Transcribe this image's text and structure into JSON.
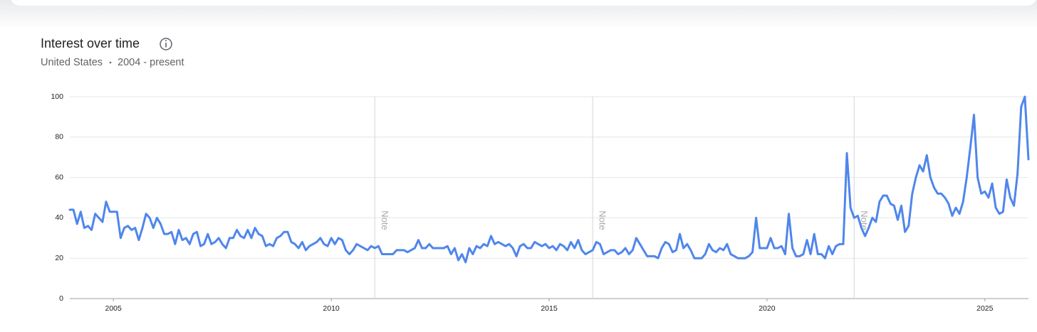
{
  "chart_data": {
    "type": "line",
    "title": "Interest over time",
    "region": "United States",
    "period": "2004 - present",
    "x": [
      2004,
      2004.083,
      2004.167,
      2004.25,
      2004.333,
      2004.417,
      2004.5,
      2004.583,
      2004.667,
      2004.75,
      2004.833,
      2004.917,
      2005,
      2005.083,
      2005.167,
      2005.25,
      2005.333,
      2005.417,
      2005.5,
      2005.583,
      2005.667,
      2005.75,
      2005.833,
      2005.917,
      2006,
      2006.083,
      2006.167,
      2006.25,
      2006.333,
      2006.417,
      2006.5,
      2006.583,
      2006.667,
      2006.75,
      2006.833,
      2006.917,
      2007,
      2007.083,
      2007.167,
      2007.25,
      2007.333,
      2007.417,
      2007.5,
      2007.583,
      2007.667,
      2007.75,
      2007.833,
      2007.917,
      2008,
      2008.083,
      2008.167,
      2008.25,
      2008.333,
      2008.417,
      2008.5,
      2008.583,
      2008.667,
      2008.75,
      2008.833,
      2008.917,
      2009,
      2009.083,
      2009.167,
      2009.25,
      2009.333,
      2009.417,
      2009.5,
      2009.583,
      2009.667,
      2009.75,
      2009.833,
      2009.917,
      2010,
      2010.083,
      2010.167,
      2010.25,
      2010.333,
      2010.417,
      2010.5,
      2010.583,
      2010.667,
      2010.75,
      2010.833,
      2010.917,
      2011,
      2011.083,
      2011.167,
      2011.25,
      2011.333,
      2011.417,
      2011.5,
      2011.583,
      2011.667,
      2011.75,
      2011.833,
      2011.917,
      2012,
      2012.083,
      2012.167,
      2012.25,
      2012.333,
      2012.417,
      2012.5,
      2012.583,
      2012.667,
      2012.75,
      2012.833,
      2012.917,
      2013,
      2013.083,
      2013.167,
      2013.25,
      2013.333,
      2013.417,
      2013.5,
      2013.583,
      2013.667,
      2013.75,
      2013.833,
      2013.917,
      2014,
      2014.083,
      2014.167,
      2014.25,
      2014.333,
      2014.417,
      2014.5,
      2014.583,
      2014.667,
      2014.75,
      2014.833,
      2014.917,
      2015,
      2015.083,
      2015.167,
      2015.25,
      2015.333,
      2015.417,
      2015.5,
      2015.583,
      2015.667,
      2015.75,
      2015.833,
      2015.917,
      2016,
      2016.083,
      2016.167,
      2016.25,
      2016.333,
      2016.417,
      2016.5,
      2016.583,
      2016.667,
      2016.75,
      2016.833,
      2016.917,
      2017,
      2017.083,
      2017.167,
      2017.25,
      2017.333,
      2017.417,
      2017.5,
      2017.583,
      2017.667,
      2017.75,
      2017.833,
      2017.917,
      2018,
      2018.083,
      2018.167,
      2018.25,
      2018.333,
      2018.417,
      2018.5,
      2018.583,
      2018.667,
      2018.75,
      2018.833,
      2018.917,
      2019,
      2019.083,
      2019.167,
      2019.25,
      2019.333,
      2019.417,
      2019.5,
      2019.583,
      2019.667,
      2019.75,
      2019.833,
      2019.917,
      2020,
      2020.083,
      2020.167,
      2020.25,
      2020.333,
      2020.417,
      2020.5,
      2020.583,
      2020.667,
      2020.75,
      2020.833,
      2020.917,
      2021,
      2021.083,
      2021.167,
      2021.25,
      2021.333,
      2021.417,
      2021.5,
      2021.583,
      2021.667,
      2021.75,
      2021.833,
      2021.917,
      2022,
      2022.083,
      2022.167,
      2022.25,
      2022.333,
      2022.417,
      2022.5,
      2022.583,
      2022.667,
      2022.75,
      2022.833,
      2022.917,
      2023,
      2023.083,
      2023.167,
      2023.25,
      2023.333,
      2023.417,
      2023.5,
      2023.583,
      2023.667,
      2023.75,
      2023.833,
      2023.917,
      2024,
      2024.083,
      2024.167,
      2024.25,
      2024.333,
      2024.417,
      2024.5,
      2024.583,
      2024.667,
      2024.75,
      2024.833,
      2024.917,
      2025,
      2025.083,
      2025.167,
      2025.25,
      2025.333,
      2025.417,
      2025.5,
      2025.583,
      2025.667,
      2025.75,
      2025.833,
      2025.917,
      2026
    ],
    "series": [
      {
        "color": "#4f86ec",
        "values": [
          44,
          44,
          37,
          43,
          35,
          36,
          34,
          42,
          40,
          38,
          48,
          43,
          43,
          43,
          30,
          35,
          36,
          34,
          35,
          29,
          35,
          42,
          40,
          35,
          40,
          37,
          32,
          32,
          33,
          27,
          34,
          29,
          30,
          27,
          32,
          33,
          26,
          27,
          32,
          27,
          28,
          30,
          27,
          25,
          30,
          30,
          34,
          31,
          30,
          34,
          30,
          35,
          32,
          31,
          26,
          27,
          26,
          30,
          31,
          33,
          33,
          28,
          27,
          25,
          28,
          24,
          26,
          27,
          28,
          30,
          27,
          26,
          30,
          27,
          30,
          29,
          24,
          22,
          24,
          27,
          26,
          25,
          24,
          26,
          25,
          26,
          22,
          22,
          22,
          22,
          24,
          24,
          24,
          23,
          24,
          25,
          29,
          25,
          25,
          27,
          25,
          25,
          25,
          25,
          26,
          22,
          25,
          19,
          22,
          18,
          25,
          22,
          26,
          25,
          27,
          26,
          31,
          27,
          28,
          27,
          26,
          27,
          25,
          21,
          26,
          27,
          25,
          25,
          28,
          27,
          26,
          27,
          25,
          26,
          24,
          27,
          26,
          24,
          28,
          25,
          29,
          24,
          22,
          23,
          24,
          28,
          27,
          22,
          23,
          24,
          24,
          22,
          23,
          25,
          22,
          24,
          30,
          27,
          24,
          21,
          21,
          21,
          20,
          25,
          28,
          27,
          23,
          24,
          32,
          25,
          27,
          24,
          20,
          20,
          20,
          22,
          27,
          24,
          23,
          25,
          24,
          27,
          22,
          21,
          20,
          20,
          20,
          21,
          23,
          40,
          25,
          25,
          25,
          30,
          25,
          25,
          26,
          22,
          42,
          25,
          21,
          21,
          22,
          29,
          22,
          32,
          22,
          22,
          20,
          26,
          22,
          26,
          27,
          27,
          72,
          45,
          40,
          41,
          35,
          31,
          35,
          40,
          38,
          48,
          51,
          51,
          47,
          46,
          39,
          46,
          33,
          36,
          52,
          60,
          66,
          63,
          71,
          60,
          55,
          52,
          52,
          50,
          47,
          41,
          45,
          42,
          48,
          60,
          75,
          91,
          60,
          52,
          53,
          50,
          57,
          45,
          42,
          43,
          59,
          50,
          46,
          62,
          95,
          100,
          69
        ]
      }
    ],
    "xlim": [
      2004,
      2026
    ],
    "xticks": [
      2005,
      2010,
      2015,
      2020,
      2025
    ],
    "ylim": [
      0,
      100
    ],
    "yticks": [
      0,
      20,
      40,
      60,
      80,
      100
    ],
    "grid": true,
    "annotations": [
      {
        "x": 2011,
        "label": "Note"
      },
      {
        "x": 2016,
        "label": "Note"
      },
      {
        "x": 2022,
        "label": "Note"
      }
    ]
  }
}
